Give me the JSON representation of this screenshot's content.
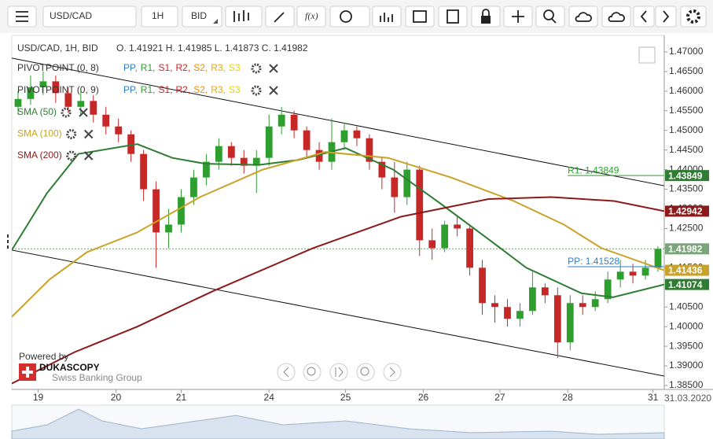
{
  "toolbar": {
    "symbol": "USD/CAD",
    "period": "1H",
    "side": "BID",
    "fx": "f(x)"
  },
  "chart_data": {
    "type": "candlestick",
    "info": "USD/CAD, 1H, BID",
    "ohlc": "O. 1.41921 H. 1.41985 L. 1.41873 C. 1.41982",
    "pivot_legends": [
      "PIVOTPOINT (0, 8)",
      "PIVOTPOINT (0, 9)"
    ],
    "pivot_levels": [
      {
        "name": "PP,",
        "color": "#2a7fd4"
      },
      {
        "name": "R1,",
        "color": "#2e9e2e"
      },
      {
        "name": "S1,",
        "color": "#d62020"
      },
      {
        "name": "R2,",
        "color": "#d62020"
      },
      {
        "name": "S2,",
        "color": "#f08c00"
      },
      {
        "name": "R3,",
        "color": "#f0a800"
      },
      {
        "name": "S3",
        "color": "#e8d000"
      }
    ],
    "up_color": "#2e9e2e",
    "down_color": "#c62828",
    "candles": {
      "open": [
        1.456,
        1.458,
        1.461,
        1.4625,
        1.4595,
        1.456,
        1.4575,
        1.454,
        1.451,
        1.449,
        1.444,
        1.435,
        1.424,
        1.426,
        1.433,
        1.438,
        1.442,
        1.446,
        1.443,
        1.441,
        1.443,
        1.451,
        1.454,
        1.45,
        1.445,
        1.442,
        1.447,
        1.45,
        1.448,
        1.442,
        1.438,
        1.433,
        1.44,
        1.422,
        1.42,
        1.426,
        1.425,
        1.415,
        1.406,
        1.405,
        1.402,
        1.404,
        1.41,
        1.408,
        1.396,
        1.406,
        1.405,
        1.407,
        1.412,
        1.414,
        1.413,
        1.415
      ],
      "high": [
        1.46,
        1.464,
        1.465,
        1.464,
        1.461,
        1.46,
        1.459,
        1.456,
        1.453,
        1.45,
        1.445,
        1.437,
        1.43,
        1.435,
        1.44,
        1.444,
        1.448,
        1.447,
        1.445,
        1.445,
        1.454,
        1.456,
        1.455,
        1.451,
        1.447,
        1.453,
        1.452,
        1.451,
        1.449,
        1.443,
        1.442,
        1.442,
        1.441,
        1.425,
        1.427,
        1.428,
        1.426,
        1.417,
        1.408,
        1.407,
        1.406,
        1.414,
        1.411,
        1.41,
        1.408,
        1.408,
        1.409,
        1.414,
        1.417,
        1.416,
        1.417,
        1.4205
      ],
      "low": [
        1.454,
        1.4565,
        1.459,
        1.457,
        1.4545,
        1.454,
        1.452,
        1.449,
        1.447,
        1.442,
        1.432,
        1.415,
        1.42,
        1.424,
        1.431,
        1.436,
        1.44,
        1.441,
        1.439,
        1.434,
        1.441,
        1.449,
        1.448,
        1.443,
        1.44,
        1.44,
        1.445,
        1.446,
        1.44,
        1.435,
        1.429,
        1.431,
        1.418,
        1.417,
        1.419,
        1.423,
        1.413,
        1.403,
        1.401,
        1.4,
        1.4,
        1.403,
        1.406,
        1.392,
        1.394,
        1.403,
        1.404,
        1.406,
        1.41,
        1.411,
        1.412,
        1.414
      ],
      "close": [
        1.458,
        1.461,
        1.4625,
        1.4595,
        1.456,
        1.4575,
        1.454,
        1.451,
        1.449,
        1.444,
        1.435,
        1.424,
        1.426,
        1.433,
        1.438,
        1.442,
        1.446,
        1.443,
        1.441,
        1.443,
        1.451,
        1.454,
        1.45,
        1.445,
        1.442,
        1.447,
        1.45,
        1.448,
        1.442,
        1.438,
        1.433,
        1.44,
        1.422,
        1.42,
        1.426,
        1.425,
        1.415,
        1.406,
        1.405,
        1.402,
        1.404,
        1.41,
        1.408,
        1.396,
        1.406,
        1.405,
        1.407,
        1.412,
        1.414,
        1.413,
        1.415,
        1.4198
      ]
    },
    "sma": [
      {
        "name": "SMA (50)",
        "color": "#2e7d32",
        "x": [
          0,
          2.8,
          5.3,
          10,
          12.8,
          15.4,
          19.7,
          22.9,
          26.6,
          30.4,
          34.1,
          37.9,
          41,
          45.4,
          47.9,
          52
        ],
        "values": [
          1.4195,
          1.434,
          1.444,
          1.4465,
          1.443,
          1.4415,
          1.4412,
          1.4425,
          1.4455,
          1.44,
          1.4315,
          1.4225,
          1.415,
          1.4085,
          1.4075,
          1.41074
        ],
        "last": {
          "value": 1.41074,
          "label": "1.41074"
        }
      },
      {
        "name": "SMA (100)",
        "color": "#c9a227",
        "x": [
          0,
          3,
          6,
          10,
          15,
          20,
          25,
          30,
          35,
          40,
          44,
          47,
          52
        ],
        "values": [
          1.4025,
          1.412,
          1.419,
          1.424,
          1.433,
          1.44,
          1.4445,
          1.443,
          1.438,
          1.432,
          1.426,
          1.42,
          1.41436
        ],
        "last": {
          "value": 1.41436,
          "label": "1.41436"
        }
      },
      {
        "name": "SMA (200)",
        "color": "#8b1a1a",
        "x": [
          0,
          5,
          10,
          16,
          24,
          31,
          38,
          43,
          48,
          52
        ],
        "values": [
          1.3855,
          1.3935,
          1.4,
          1.409,
          1.42,
          1.428,
          1.4325,
          1.433,
          1.432,
          1.42942
        ],
        "last": {
          "value": 1.42942,
          "label": "1.42942"
        }
      }
    ],
    "pivots": [
      {
        "label": "R1: 1.43849",
        "value": 1.43849,
        "color": "#2e9e2e",
        "x": [
          44.3,
          52
        ],
        "tag": "1.43849"
      },
      {
        "label": "PP: 1.41528",
        "value": 1.41528,
        "color": "#2a7fd4",
        "x": [
          44.3,
          52
        ]
      }
    ],
    "last_price": {
      "value": 1.41982,
      "label": "1.41982"
    },
    "trendlines": [
      {
        "x": [
          0,
          52
        ],
        "values": [
          1.4684,
          1.4359
        ]
      },
      {
        "x": [
          0,
          52
        ],
        "values": [
          1.4195,
          1.3874
        ]
      }
    ],
    "xlim": [
      0,
      52
    ],
    "xticks": [
      {
        "value": 2.1,
        "label": "19"
      },
      {
        "value": 8.3,
        "label": "20"
      },
      {
        "value": 13.5,
        "label": "21"
      },
      {
        "value": 20.5,
        "label": "24"
      },
      {
        "value": 26.6,
        "label": "25"
      },
      {
        "value": 32.8,
        "label": "26"
      },
      {
        "value": 38.9,
        "label": "27"
      },
      {
        "value": 44.3,
        "label": "28"
      },
      {
        "value": 51.1,
        "label": "31"
      }
    ],
    "date_label": "31.03.2020",
    "ylim": [
      1.384,
      1.4742
    ],
    "yticks": [
      {
        "value": 1.47,
        "label": "1.47000"
      },
      {
        "value": 1.465,
        "label": "1.46500"
      },
      {
        "value": 1.46,
        "label": "1.46000"
      },
      {
        "value": 1.455,
        "label": "1.45500"
      },
      {
        "value": 1.45,
        "label": "1.45000"
      },
      {
        "value": 1.445,
        "label": "1.44500"
      },
      {
        "value": 1.44,
        "label": "1.44000"
      },
      {
        "value": 1.435,
        "label": "1.43500"
      },
      {
        "value": 1.43,
        "label": "1.43000"
      },
      {
        "value": 1.425,
        "label": "1.42500"
      },
      {
        "value": 1.42,
        "label": "1.42000"
      },
      {
        "value": 1.415,
        "label": "1.41500"
      },
      {
        "value": 1.41,
        "label": "1.41000"
      },
      {
        "value": 1.405,
        "label": "1.40500"
      },
      {
        "value": 1.4,
        "label": "1.40000"
      },
      {
        "value": 1.395,
        "label": "1.39500"
      },
      {
        "value": 1.39,
        "label": "1.39000"
      },
      {
        "value": 1.385,
        "label": "1.38500"
      }
    ]
  },
  "branding": {
    "powered": "Powered by",
    "name": "DUKASCOPY",
    "tagline": "Swiss Banking Group"
  }
}
